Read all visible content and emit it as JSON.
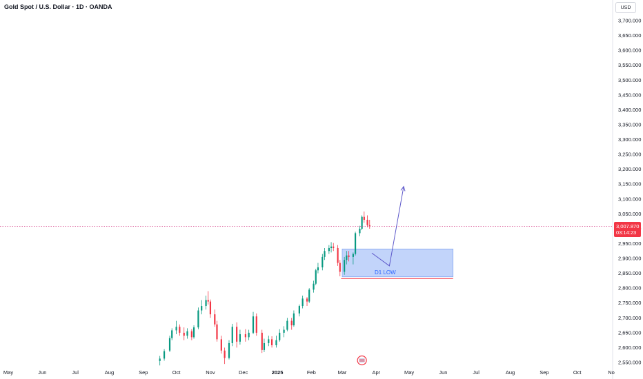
{
  "header": {
    "title": "Gold Spot / U.S. Dollar · 1D · OANDA",
    "currency": "USD"
  },
  "price_tag": {
    "price": "3,007.870",
    "countdown": "03:14:23",
    "color": "#f23645"
  },
  "colors": {
    "up": "#089981",
    "down": "#f23645",
    "zone_fill": "#b7cdf9",
    "zone_stroke": "#6f97f0",
    "arrow": "#5b56c9",
    "price_line": "#d64a8f",
    "support_line": "#f23645"
  },
  "chart_data": {
    "type": "candlestick",
    "title": "Gold Spot / U.S. Dollar · 1D · OANDA",
    "ylim": [
      2530,
      3735
    ],
    "yticks": [
      "2,550.000",
      "2,600.000",
      "2,650.000",
      "2,700.000",
      "2,750.000",
      "2,800.000",
      "2,850.000",
      "2,900.000",
      "2,950.000",
      "3,000.000",
      "3,050.000",
      "3,100.000",
      "3,150.000",
      "3,200.000",
      "3,250.000",
      "3,300.000",
      "3,350.000",
      "3,400.000",
      "3,450.000",
      "3,500.000",
      "3,550.000",
      "3,600.000",
      "3,650.000",
      "3,700.000"
    ],
    "x_range": [
      "2024-05-01",
      "2025-11-01"
    ],
    "xticks": [
      {
        "label": "May",
        "date": "2024-05-01"
      },
      {
        "label": "Jun",
        "date": "2024-06-01"
      },
      {
        "label": "Jul",
        "date": "2024-07-01"
      },
      {
        "label": "Aug",
        "date": "2024-08-01"
      },
      {
        "label": "Sep",
        "date": "2024-09-01"
      },
      {
        "label": "Oct",
        "date": "2024-10-01"
      },
      {
        "label": "Nov",
        "date": "2024-11-01"
      },
      {
        "label": "Dec",
        "date": "2024-12-01"
      },
      {
        "label": "2025",
        "date": "2025-01-01",
        "bold": true
      },
      {
        "label": "Feb",
        "date": "2025-02-01"
      },
      {
        "label": "Mar",
        "date": "2025-03-01"
      },
      {
        "label": "Apr",
        "date": "2025-04-01"
      },
      {
        "label": "May",
        "date": "2025-05-01"
      },
      {
        "label": "Jun",
        "date": "2025-06-01"
      },
      {
        "label": "Jul",
        "date": "2025-07-01"
      },
      {
        "label": "Aug",
        "date": "2025-08-01"
      },
      {
        "label": "Sep",
        "date": "2025-09-01"
      },
      {
        "label": "Oct",
        "date": "2025-10-01"
      },
      {
        "label": "No",
        "date": "2025-11-01"
      }
    ],
    "last_price": 3007.87,
    "candles": [
      {
        "d": "2024-09-16",
        "o": 2555,
        "h": 2572,
        "l": 2540,
        "c": 2563
      },
      {
        "d": "2024-09-20",
        "o": 2563,
        "h": 2595,
        "l": 2556,
        "c": 2588
      },
      {
        "d": "2024-09-25",
        "o": 2590,
        "h": 2640,
        "l": 2585,
        "c": 2632
      },
      {
        "d": "2024-09-27",
        "o": 2632,
        "h": 2665,
        "l": 2625,
        "c": 2658
      },
      {
        "d": "2024-10-01",
        "o": 2658,
        "h": 2690,
        "l": 2645,
        "c": 2670
      },
      {
        "d": "2024-10-04",
        "o": 2670,
        "h": 2678,
        "l": 2640,
        "c": 2650
      },
      {
        "d": "2024-10-08",
        "o": 2650,
        "h": 2668,
        "l": 2625,
        "c": 2640
      },
      {
        "d": "2024-10-11",
        "o": 2640,
        "h": 2665,
        "l": 2630,
        "c": 2655
      },
      {
        "d": "2024-10-15",
        "o": 2655,
        "h": 2662,
        "l": 2625,
        "c": 2635
      },
      {
        "d": "2024-10-17",
        "o": 2635,
        "h": 2675,
        "l": 2630,
        "c": 2668
      },
      {
        "d": "2024-10-21",
        "o": 2668,
        "h": 2735,
        "l": 2662,
        "c": 2725
      },
      {
        "d": "2024-10-24",
        "o": 2725,
        "h": 2760,
        "l": 2712,
        "c": 2740
      },
      {
        "d": "2024-10-28",
        "o": 2740,
        "h": 2775,
        "l": 2728,
        "c": 2760
      },
      {
        "d": "2024-10-30",
        "o": 2760,
        "h": 2790,
        "l": 2745,
        "c": 2755
      },
      {
        "d": "2024-11-01",
        "o": 2755,
        "h": 2762,
        "l": 2700,
        "c": 2712
      },
      {
        "d": "2024-11-05",
        "o": 2712,
        "h": 2728,
        "l": 2670,
        "c": 2678
      },
      {
        "d": "2024-11-07",
        "o": 2678,
        "h": 2690,
        "l": 2620,
        "c": 2628
      },
      {
        "d": "2024-11-11",
        "o": 2628,
        "h": 2640,
        "l": 2580,
        "c": 2590
      },
      {
        "d": "2024-11-14",
        "o": 2590,
        "h": 2600,
        "l": 2545,
        "c": 2565
      },
      {
        "d": "2024-11-18",
        "o": 2565,
        "h": 2625,
        "l": 2560,
        "c": 2615
      },
      {
        "d": "2024-11-21",
        "o": 2615,
        "h": 2680,
        "l": 2605,
        "c": 2670
      },
      {
        "d": "2024-11-25",
        "o": 2670,
        "h": 2685,
        "l": 2600,
        "c": 2620
      },
      {
        "d": "2024-11-28",
        "o": 2620,
        "h": 2660,
        "l": 2610,
        "c": 2645
      },
      {
        "d": "2024-12-03",
        "o": 2645,
        "h": 2662,
        "l": 2620,
        "c": 2635
      },
      {
        "d": "2024-12-06",
        "o": 2635,
        "h": 2660,
        "l": 2625,
        "c": 2650
      },
      {
        "d": "2024-12-10",
        "o": 2650,
        "h": 2720,
        "l": 2645,
        "c": 2705
      },
      {
        "d": "2024-12-13",
        "o": 2705,
        "h": 2715,
        "l": 2640,
        "c": 2650
      },
      {
        "d": "2024-12-18",
        "o": 2650,
        "h": 2660,
        "l": 2582,
        "c": 2592
      },
      {
        "d": "2024-12-20",
        "o": 2592,
        "h": 2630,
        "l": 2585,
        "c": 2615
      },
      {
        "d": "2024-12-24",
        "o": 2615,
        "h": 2640,
        "l": 2605,
        "c": 2628
      },
      {
        "d": "2024-12-27",
        "o": 2628,
        "h": 2638,
        "l": 2600,
        "c": 2608
      },
      {
        "d": "2024-12-31",
        "o": 2608,
        "h": 2640,
        "l": 2600,
        "c": 2625
      },
      {
        "d": "2025-01-03",
        "o": 2625,
        "h": 2662,
        "l": 2620,
        "c": 2650
      },
      {
        "d": "2025-01-07",
        "o": 2650,
        "h": 2672,
        "l": 2635,
        "c": 2660
      },
      {
        "d": "2025-01-10",
        "o": 2660,
        "h": 2700,
        "l": 2655,
        "c": 2690
      },
      {
        "d": "2025-01-14",
        "o": 2690,
        "h": 2700,
        "l": 2660,
        "c": 2675
      },
      {
        "d": "2025-01-16",
        "o": 2675,
        "h": 2725,
        "l": 2670,
        "c": 2715
      },
      {
        "d": "2025-01-21",
        "o": 2715,
        "h": 2745,
        "l": 2705,
        "c": 2740
      },
      {
        "d": "2025-01-24",
        "o": 2740,
        "h": 2775,
        "l": 2732,
        "c": 2765
      },
      {
        "d": "2025-01-28",
        "o": 2765,
        "h": 2770,
        "l": 2740,
        "c": 2755
      },
      {
        "d": "2025-01-30",
        "o": 2755,
        "h": 2800,
        "l": 2750,
        "c": 2795
      },
      {
        "d": "2025-02-03",
        "o": 2795,
        "h": 2825,
        "l": 2785,
        "c": 2815
      },
      {
        "d": "2025-02-05",
        "o": 2815,
        "h": 2865,
        "l": 2810,
        "c": 2860
      },
      {
        "d": "2025-02-07",
        "o": 2860,
        "h": 2885,
        "l": 2850,
        "c": 2870
      },
      {
        "d": "2025-02-11",
        "o": 2870,
        "h": 2915,
        "l": 2860,
        "c": 2905
      },
      {
        "d": "2025-02-13",
        "o": 2905,
        "h": 2935,
        "l": 2895,
        "c": 2925
      },
      {
        "d": "2025-02-17",
        "o": 2925,
        "h": 2945,
        "l": 2915,
        "c": 2935
      },
      {
        "d": "2025-02-19",
        "o": 2935,
        "h": 2955,
        "l": 2920,
        "c": 2940
      },
      {
        "d": "2025-02-21",
        "o": 2940,
        "h": 2952,
        "l": 2925,
        "c": 2935
      },
      {
        "d": "2025-02-25",
        "o": 2935,
        "h": 2945,
        "l": 2875,
        "c": 2885
      },
      {
        "d": "2025-02-27",
        "o": 2885,
        "h": 2895,
        "l": 2840,
        "c": 2855
      },
      {
        "d": "2025-03-03",
        "o": 2855,
        "h": 2905,
        "l": 2845,
        "c": 2895
      },
      {
        "d": "2025-03-05",
        "o": 2895,
        "h": 2925,
        "l": 2880,
        "c": 2910
      },
      {
        "d": "2025-03-07",
        "o": 2910,
        "h": 2925,
        "l": 2890,
        "c": 2905
      },
      {
        "d": "2025-03-11",
        "o": 2905,
        "h": 2920,
        "l": 2880,
        "c": 2915
      },
      {
        "d": "2025-03-13",
        "o": 2915,
        "h": 2990,
        "l": 2910,
        "c": 2985
      },
      {
        "d": "2025-03-17",
        "o": 2985,
        "h": 3010,
        "l": 2975,
        "c": 3000
      },
      {
        "d": "2025-03-19",
        "o": 3000,
        "h": 3045,
        "l": 2995,
        "c": 3040
      },
      {
        "d": "2025-03-21",
        "o": 3040,
        "h": 3058,
        "l": 3020,
        "c": 3030
      },
      {
        "d": "2025-03-24",
        "o": 3030,
        "h": 3045,
        "l": 3005,
        "c": 3012
      },
      {
        "d": "2025-03-26",
        "o": 3012,
        "h": 3030,
        "l": 3000,
        "c": 3008
      }
    ],
    "annotations": [
      {
        "type": "zone",
        "x": [
          "2025-03-01",
          "2025-06-10"
        ],
        "y": [
          2838,
          2932
        ],
        "label": "D1 LOW"
      },
      {
        "type": "support_line",
        "x": [
          "2025-02-28",
          "2025-06-10"
        ],
        "y": 2832
      },
      {
        "type": "arrow",
        "points": [
          {
            "x": "2025-03-28",
            "y": 2918
          },
          {
            "x": "2025-04-13",
            "y": 2875
          },
          {
            "x": "2025-04-26",
            "y": 3142
          }
        ]
      }
    ]
  }
}
